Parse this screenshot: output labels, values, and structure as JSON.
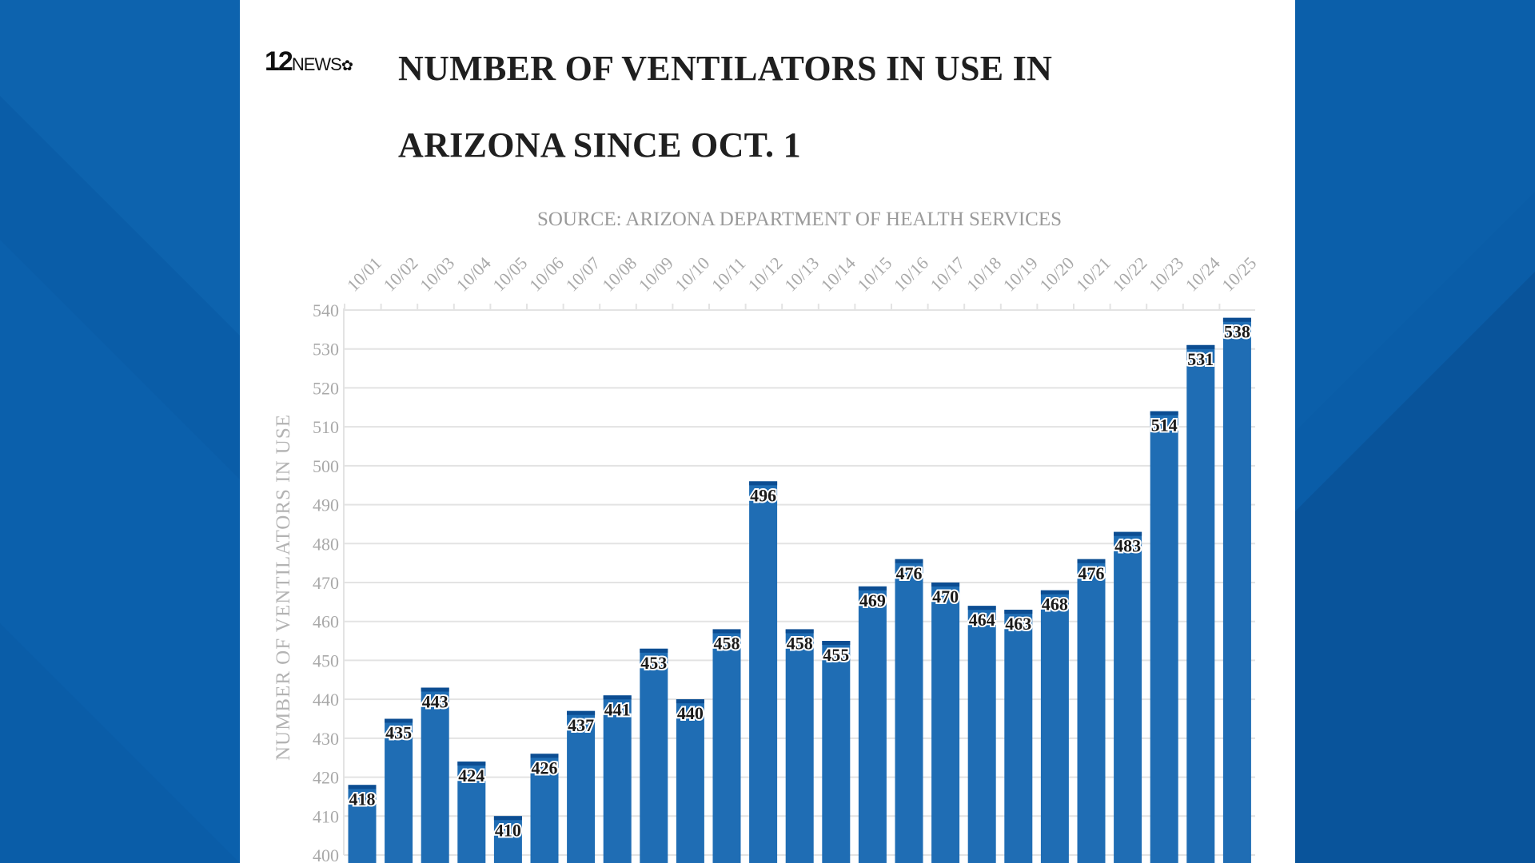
{
  "logo": {
    "text": "12NEWS",
    "icon": "nbc-peacock-icon"
  },
  "colors": {
    "bar": "#1f6db4",
    "bar_cap": "#0c4d92",
    "background_blue": "#0a5da8",
    "grid": "#e3e3e3",
    "axis_text": "#a9a9a9"
  },
  "chart_data": {
    "type": "bar",
    "title": "NUMBER OF VENTILATORS IN USE IN ARIZONA SINCE OCT. 1",
    "subtitle": "SOURCE: ARIZONA DEPARTMENT OF HEALTH SERVICES",
    "xlabel": "",
    "ylabel": "NUMBER OF VENTILATORS IN USE",
    "ylim": [
      400,
      540
    ],
    "yticks": [
      400,
      410,
      420,
      430,
      440,
      450,
      460,
      470,
      480,
      490,
      500,
      510,
      520,
      530,
      540
    ],
    "grid": true,
    "categories": [
      "10/01",
      "10/02",
      "10/03",
      "10/04",
      "10/05",
      "10/06",
      "10/07",
      "10/08",
      "10/09",
      "10/10",
      "10/11",
      "10/12",
      "10/13",
      "10/14",
      "10/15",
      "10/16",
      "10/17",
      "10/18",
      "10/19",
      "10/20",
      "10/21",
      "10/22",
      "10/23",
      "10/24",
      "10/25"
    ],
    "values": [
      418,
      435,
      443,
      424,
      410,
      426,
      437,
      441,
      453,
      440,
      458,
      496,
      458,
      455,
      469,
      476,
      470,
      464,
      463,
      468,
      476,
      483,
      514,
      531,
      538
    ]
  }
}
